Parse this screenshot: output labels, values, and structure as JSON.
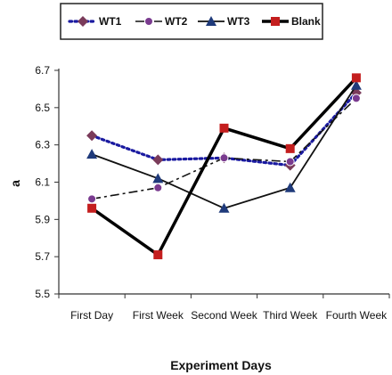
{
  "chart_data": {
    "type": "line",
    "categories": [
      "First Day",
      "First Week",
      "Second Week",
      "Third Week",
      "Fourth Week"
    ],
    "ylabel": "a",
    "xlabel": "Experiment Days",
    "ylim": [
      5.5,
      6.7
    ],
    "yticks": [
      "5.5",
      "5.7",
      "5.9",
      "6.1",
      "6.3",
      "6.5",
      "6.7"
    ],
    "grid": false,
    "legend_position": "top",
    "series": [
      {
        "name": "WT1",
        "values": [
          6.35,
          6.22,
          6.23,
          6.19,
          6.58
        ],
        "color": "#1a1aa0",
        "line": "dotted",
        "marker": "diamond",
        "marker_color": "#7a3b5a"
      },
      {
        "name": "WT2",
        "values": [
          6.01,
          6.07,
          6.23,
          6.21,
          6.55
        ],
        "color": "#111111",
        "line": "dashdot",
        "marker": "circle",
        "marker_color": "#7a3b8f"
      },
      {
        "name": "WT3",
        "values": [
          6.25,
          6.12,
          5.96,
          6.07,
          6.62
        ],
        "color": "#111111",
        "line": "solid",
        "marker": "triangle",
        "marker_color": "#1f3a7a"
      },
      {
        "name": "Blank",
        "values": [
          5.96,
          5.71,
          6.39,
          6.28,
          6.66
        ],
        "color": "#000000",
        "line": "thick",
        "marker": "square",
        "marker_color": "#c41e1e"
      }
    ]
  }
}
